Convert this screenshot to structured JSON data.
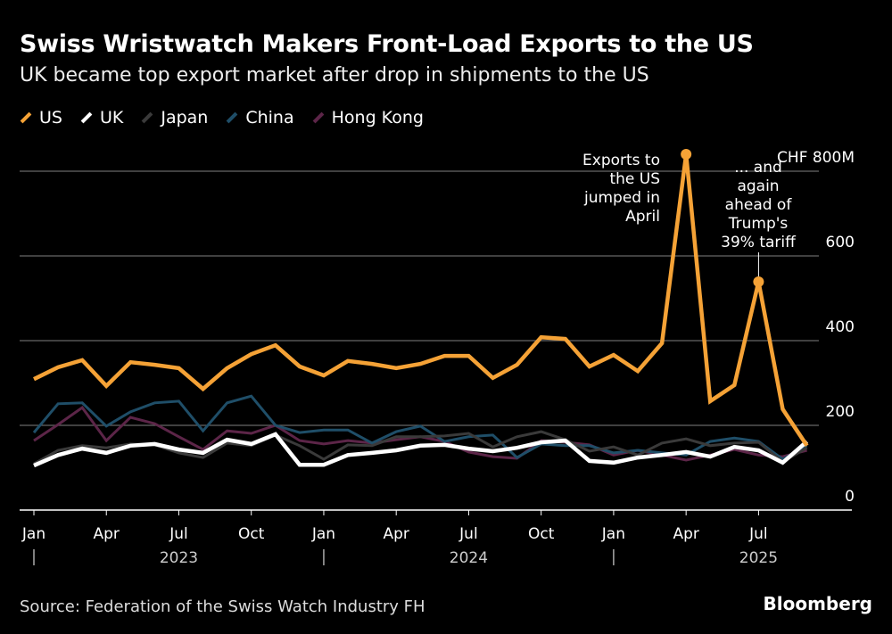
{
  "title": "Swiss Wristwatch Makers Front-Load Exports to the US",
  "subtitle": "UK became top export market after drop in shipments to the US",
  "source": "Source: Federation of the Swiss Watch Industry FH",
  "brand": "Bloomberg",
  "chart_data": {
    "type": "line",
    "x": [
      "2023-01",
      "2023-02",
      "2023-03",
      "2023-04",
      "2023-05",
      "2023-06",
      "2023-07",
      "2023-08",
      "2023-09",
      "2023-10",
      "2023-11",
      "2023-12",
      "2024-01",
      "2024-02",
      "2024-03",
      "2024-04",
      "2024-05",
      "2024-06",
      "2024-07",
      "2024-08",
      "2024-09",
      "2024-10",
      "2024-11",
      "2024-12",
      "2025-01",
      "2025-02",
      "2025-03",
      "2025-04",
      "2025-05",
      "2025-06",
      "2025-07",
      "2025-08",
      "2025-09"
    ],
    "x_tick_labels": [
      "Jan",
      "Apr",
      "Jul",
      "Oct",
      "Jan",
      "Apr",
      "Jul",
      "Oct",
      "Jan",
      "Apr",
      "Jul"
    ],
    "x_year_labels": [
      "2023",
      "2024",
      "2025"
    ],
    "y_tick_labels": [
      "0",
      "200",
      "400",
      "600",
      "CHF 800M"
    ],
    "ylim": [
      0,
      800
    ],
    "grid": true,
    "legend_placement": "top-left",
    "series": [
      {
        "name": "US",
        "color": "#f5a236",
        "values": [
          309,
          337,
          354,
          293,
          349,
          343,
          335,
          286,
          335,
          368,
          389,
          339,
          318,
          352,
          345,
          335,
          345,
          364,
          364,
          312,
          343,
          408,
          404,
          339,
          366,
          328,
          394,
          840,
          257,
          295,
          539,
          238,
          152
        ]
      },
      {
        "name": "UK",
        "color": "#ffffff",
        "values": [
          105,
          130,
          145,
          135,
          152,
          156,
          143,
          135,
          166,
          156,
          179,
          107,
          107,
          130,
          135,
          141,
          152,
          154,
          145,
          139,
          147,
          160,
          164,
          116,
          112,
          124,
          130,
          137,
          126,
          149,
          141,
          112,
          162
        ]
      },
      {
        "name": "Japan",
        "color": "#3a3a3a",
        "values": [
          109,
          141,
          152,
          147,
          156,
          154,
          135,
          124,
          158,
          152,
          177,
          152,
          120,
          154,
          152,
          173,
          173,
          175,
          181,
          149,
          173,
          185,
          166,
          139,
          149,
          130,
          158,
          168,
          152,
          158,
          160,
          114,
          147
        ]
      },
      {
        "name": "China",
        "color": "#1f4e68",
        "values": [
          183,
          251,
          253,
          198,
          232,
          253,
          257,
          187,
          253,
          269,
          200,
          183,
          189,
          189,
          158,
          185,
          198,
          162,
          173,
          177,
          124,
          156,
          152,
          152,
          135,
          141,
          135,
          130,
          162,
          170,
          162,
          120,
          152
        ]
      },
      {
        "name": "Hong Kong",
        "color": "#5c2548",
        "values": [
          164,
          202,
          242,
          164,
          219,
          204,
          173,
          143,
          187,
          181,
          200,
          164,
          156,
          164,
          158,
          166,
          173,
          162,
          137,
          126,
          122,
          164,
          160,
          154,
          130,
          141,
          130,
          118,
          130,
          143,
          130,
          126,
          141
        ]
      }
    ],
    "annotations": [
      {
        "text": "Exports to the US jumped in April",
        "lines": [
          "Exports to",
          "the US",
          "jumped in",
          "April"
        ],
        "x": "2025-04"
      },
      {
        "text": "... and again ahead of Trump's 39% tariff",
        "lines": [
          "... and",
          "again",
          "ahead of",
          "Trump's",
          "39% tariff"
        ],
        "x": "2025-07"
      }
    ]
  }
}
